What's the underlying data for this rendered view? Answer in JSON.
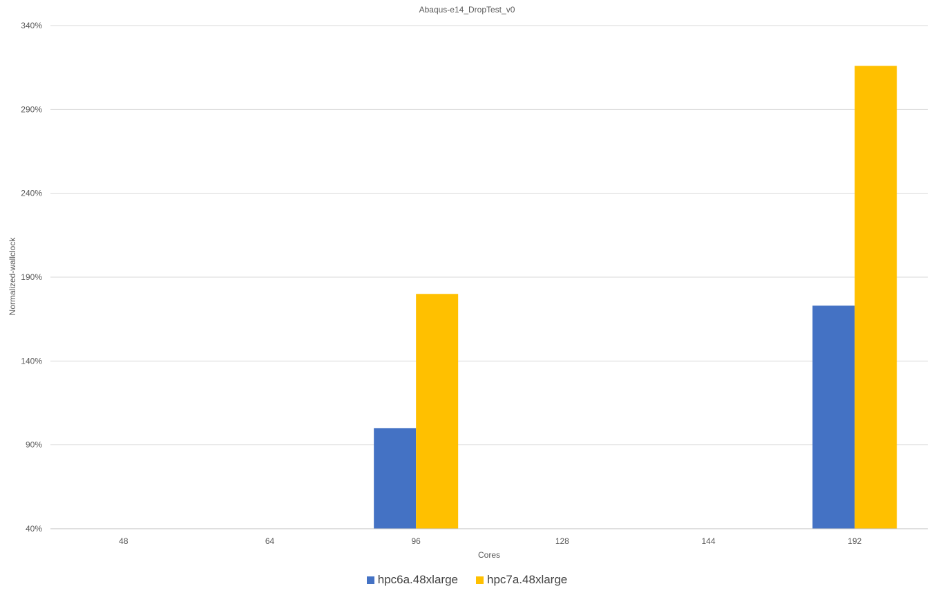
{
  "chart_data": {
    "type": "bar",
    "title": "Abaqus-e14_DropTest_v0",
    "xlabel": "Cores",
    "ylabel": "Normalized-wallclock",
    "categories": [
      "48",
      "64",
      "96",
      "128",
      "144",
      "192"
    ],
    "ylim": [
      40,
      340
    ],
    "yticks": [
      40,
      90,
      140,
      190,
      240,
      290,
      340
    ],
    "ytick_labels": [
      "40%",
      "90%",
      "140%",
      "190%",
      "240%",
      "290%",
      "340%"
    ],
    "grid": true,
    "legend_position": "bottom",
    "series": [
      {
        "name": "hpc6a.48xlarge",
        "color": "#4472C4",
        "values": [
          null,
          null,
          100,
          null,
          null,
          173
        ]
      },
      {
        "name": "hpc7a.48xlarge",
        "color": "#FFC000",
        "values": [
          null,
          null,
          180,
          null,
          null,
          316
        ]
      }
    ]
  }
}
